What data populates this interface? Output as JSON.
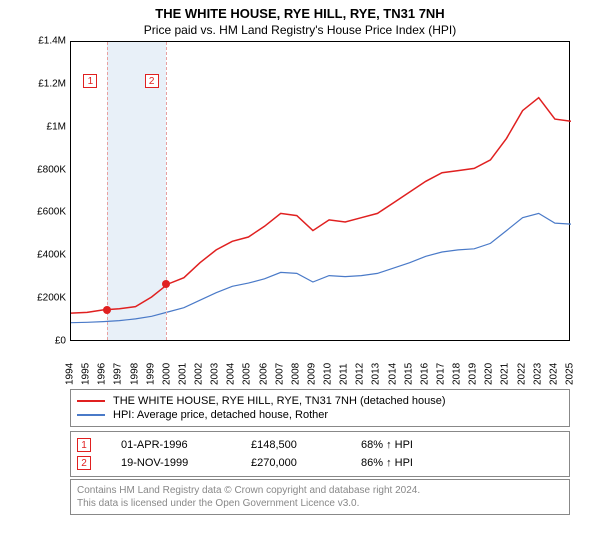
{
  "title": "THE WHITE HOUSE, RYE HILL, RYE, TN31 7NH",
  "subtitle": "Price paid vs. HM Land Registry's House Price Index (HPI)",
  "chart": {
    "type": "line",
    "background_color": "#ffffff",
    "border_color": "#000000",
    "ylim": [
      0,
      1400000
    ],
    "ytick_step": 200000,
    "yticks": [
      "£0",
      "£200K",
      "£400K",
      "£600K",
      "£800K",
      "£1M",
      "£1.2M",
      "£1.4M"
    ],
    "xlim": [
      1994,
      2025
    ],
    "xticks": [
      "1994",
      "1995",
      "1996",
      "1997",
      "1998",
      "1999",
      "2000",
      "2001",
      "2002",
      "2003",
      "2004",
      "2005",
      "2006",
      "2007",
      "2008",
      "2009",
      "2010",
      "2011",
      "2012",
      "2013",
      "2014",
      "2015",
      "2016",
      "2017",
      "2018",
      "2019",
      "2020",
      "2021",
      "2022",
      "2023",
      "2024",
      "2025"
    ],
    "band_color": "#e8f0f8",
    "band_years": [
      1996,
      1997,
      1998,
      1999
    ],
    "dash_color": "#e8a0a0",
    "series": [
      {
        "name": "price_paid",
        "label": "THE WHITE HOUSE, RYE HILL, RYE, TN31 7NH (detached house)",
        "color": "#e02020",
        "line_width": 1.5,
        "data": [
          [
            1994,
            135000
          ],
          [
            1995,
            138000
          ],
          [
            1996,
            150000
          ],
          [
            1997,
            155000
          ],
          [
            1998,
            165000
          ],
          [
            1999,
            210000
          ],
          [
            2000,
            270000
          ],
          [
            2001,
            300000
          ],
          [
            2002,
            370000
          ],
          [
            2003,
            430000
          ],
          [
            2004,
            470000
          ],
          [
            2005,
            490000
          ],
          [
            2006,
            540000
          ],
          [
            2007,
            600000
          ],
          [
            2008,
            590000
          ],
          [
            2009,
            520000
          ],
          [
            2010,
            570000
          ],
          [
            2011,
            560000
          ],
          [
            2012,
            580000
          ],
          [
            2013,
            600000
          ],
          [
            2014,
            650000
          ],
          [
            2015,
            700000
          ],
          [
            2016,
            750000
          ],
          [
            2017,
            790000
          ],
          [
            2018,
            800000
          ],
          [
            2019,
            810000
          ],
          [
            2020,
            850000
          ],
          [
            2021,
            950000
          ],
          [
            2022,
            1080000
          ],
          [
            2023,
            1140000
          ],
          [
            2024,
            1040000
          ],
          [
            2025,
            1030000
          ]
        ]
      },
      {
        "name": "hpi",
        "label": "HPI: Average price, detached house, Rother",
        "color": "#4a7ac8",
        "line_width": 1.2,
        "data": [
          [
            1994,
            90000
          ],
          [
            1995,
            92000
          ],
          [
            1996,
            95000
          ],
          [
            1997,
            100000
          ],
          [
            1998,
            108000
          ],
          [
            1999,
            120000
          ],
          [
            2000,
            140000
          ],
          [
            2001,
            160000
          ],
          [
            2002,
            195000
          ],
          [
            2003,
            230000
          ],
          [
            2004,
            260000
          ],
          [
            2005,
            275000
          ],
          [
            2006,
            295000
          ],
          [
            2007,
            325000
          ],
          [
            2008,
            320000
          ],
          [
            2009,
            280000
          ],
          [
            2010,
            310000
          ],
          [
            2011,
            305000
          ],
          [
            2012,
            310000
          ],
          [
            2013,
            320000
          ],
          [
            2014,
            345000
          ],
          [
            2015,
            370000
          ],
          [
            2016,
            400000
          ],
          [
            2017,
            420000
          ],
          [
            2018,
            430000
          ],
          [
            2019,
            435000
          ],
          [
            2020,
            460000
          ],
          [
            2021,
            520000
          ],
          [
            2022,
            580000
          ],
          [
            2023,
            600000
          ],
          [
            2024,
            555000
          ],
          [
            2025,
            550000
          ]
        ]
      }
    ],
    "sale_markers": [
      {
        "num": "1",
        "year": 1996.25,
        "price": 148500,
        "label_year": 1995.2,
        "color": "#e02020"
      },
      {
        "num": "2",
        "year": 1999.88,
        "price": 270000,
        "label_year": 1999.0,
        "color": "#e02020"
      }
    ]
  },
  "sales": [
    {
      "num": "1",
      "date": "01-APR-1996",
      "price": "£148,500",
      "rel": "68% ↑ HPI"
    },
    {
      "num": "2",
      "date": "19-NOV-1999",
      "price": "£270,000",
      "rel": "86% ↑ HPI"
    }
  ],
  "footer": {
    "line1": "Contains HM Land Registry data © Crown copyright and database right 2024.",
    "line2": "This data is licensed under the Open Government Licence v3.0."
  }
}
